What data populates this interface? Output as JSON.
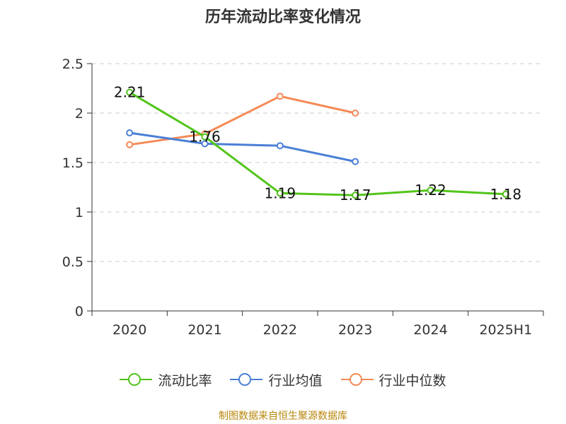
{
  "title": "历年流动比率变化情况",
  "source": "制图数据来自恒生聚源数据库",
  "chart_data": {
    "type": "line",
    "categories": [
      "2020",
      "2021",
      "2022",
      "2023",
      "2024",
      "2025H1"
    ],
    "ylim": [
      0,
      2.5
    ],
    "yticks": [
      "0",
      "0.5",
      "1",
      "1.5",
      "2",
      "2.5"
    ],
    "grid": true,
    "legend_position": "bottom",
    "series": [
      {
        "name": "流动比率",
        "color": "#52c41a",
        "values": [
          2.21,
          1.76,
          1.19,
          1.17,
          1.22,
          1.18
        ],
        "labels": [
          "2.21",
          "1.76",
          "1.19",
          "1.17",
          "1.22",
          "1.18"
        ]
      },
      {
        "name": "行业均值",
        "color": "#4a7fd6",
        "values": [
          1.8,
          1.69,
          1.67,
          1.51,
          null,
          null
        ]
      },
      {
        "name": "行业中位数",
        "color": "#f58a55",
        "values": [
          1.68,
          1.79,
          2.17,
          2.0,
          null,
          null
        ]
      }
    ]
  }
}
